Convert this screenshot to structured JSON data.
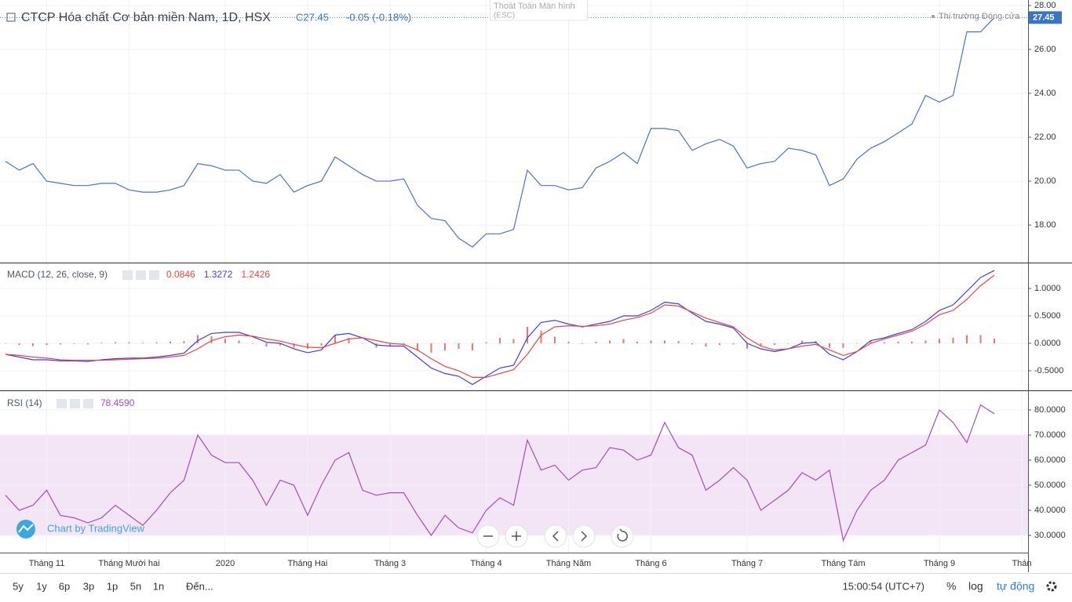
{
  "chart_data": [
    {
      "type": "line",
      "title": "CTCP Hóa chất Cơ bản miền Nam, 1D, HSX",
      "close_label": "C27.45",
      "change_label": "-0.05 (-0.18%)",
      "status": "Thị trường Đóng cửa",
      "last_label": "27.45",
      "ylim": [
        16.29,
        28.25
      ],
      "yticks": [
        {
          "value": 18,
          "label": "18.00"
        },
        {
          "value": 20,
          "label": "20.00"
        },
        {
          "value": 22,
          "label": "22.00"
        },
        {
          "value": 24,
          "label": "24.00"
        },
        {
          "value": 26,
          "label": "26.00"
        },
        {
          "value": 28,
          "label": "28.00"
        }
      ],
      "series": [
        {
          "color": "#4a72c9",
          "values": [
            20.9,
            20.5,
            20.8,
            20.0,
            19.9,
            19.8,
            19.8,
            19.9,
            19.9,
            19.6,
            19.5,
            19.5,
            19.6,
            19.8,
            20.8,
            20.7,
            20.5,
            20.5,
            20.0,
            19.9,
            20.3,
            19.5,
            19.8,
            20.0,
            21.1,
            20.7,
            20.3,
            20.0,
            20.0,
            20.1,
            18.9,
            18.3,
            18.2,
            17.4,
            17.0,
            17.6,
            17.6,
            17.8,
            20.5,
            19.8,
            19.8,
            19.6,
            19.7,
            20.6,
            20.9,
            21.3,
            20.8,
            22.4,
            22.4,
            22.3,
            21.4,
            21.7,
            21.9,
            21.6,
            20.6,
            20.8,
            20.9,
            21.5,
            21.4,
            21.2,
            19.8,
            20.1,
            21.0,
            21.5,
            21.8,
            22.2,
            22.6,
            23.9,
            23.6,
            23.9,
            26.8,
            26.8,
            27.45,
            null,
            null
          ]
        }
      ],
      "grid": true
    },
    {
      "type": "line",
      "title": "MACD (12, 26, close, 9)",
      "ylim": [
        -0.857,
        1.457
      ],
      "yticks": [
        {
          "value": -0.5,
          "label": "-0.5000"
        },
        {
          "value": 0,
          "label": "0.0000"
        },
        {
          "value": 0.5,
          "label": "0.5000"
        },
        {
          "value": 1,
          "label": "1.0000"
        }
      ],
      "series": [
        {
          "type": "bar",
          "color": "#ef4444",
          "last_label": "0.0846",
          "values": [
            0,
            -0.03,
            -0.05,
            -0.03,
            -0.02,
            -0.01,
            -0.02,
            0.01,
            0.02,
            0.02,
            0.01,
            0.02,
            0.03,
            0.04,
            0.15,
            0.13,
            0.08,
            0.05,
            -0.01,
            -0.06,
            -0.04,
            -0.08,
            -0.1,
            -0.04,
            0.15,
            0.1,
            0,
            -0.08,
            -0.05,
            -0.03,
            -0.13,
            -0.17,
            -0.13,
            -0.1,
            -0.13,
            0.02,
            0.1,
            0.08,
            0.3,
            0.23,
            0.12,
            0.03,
            -0.01,
            0.03,
            0.05,
            0.08,
            0.03,
            0.05,
            0.05,
            0.04,
            -0.02,
            -0.06,
            -0.03,
            -0.02,
            -0.1,
            -0.05,
            -0.03,
            0,
            0.05,
            0.04,
            -0.08,
            -0.08,
            0,
            0.05,
            0.02,
            0.03,
            0.03,
            0.05,
            0.08,
            0.1,
            0.15,
            0.15,
            0.0846,
            null,
            null
          ]
        },
        {
          "type": "line",
          "color": "#3f3fdc",
          "last_label": "1.3272",
          "values": [
            -0.2,
            -0.25,
            -0.3,
            -0.3,
            -0.32,
            -0.32,
            -0.33,
            -0.3,
            -0.28,
            -0.27,
            -0.27,
            -0.25,
            -0.22,
            -0.18,
            0.05,
            0.18,
            0.2,
            0.2,
            0.12,
            0.02,
            0.0,
            -0.1,
            -0.17,
            -0.12,
            0.15,
            0.18,
            0.1,
            -0.03,
            -0.05,
            -0.05,
            -0.25,
            -0.45,
            -0.55,
            -0.6,
            -0.75,
            -0.6,
            -0.45,
            -0.4,
            0.1,
            0.38,
            0.42,
            0.35,
            0.3,
            0.35,
            0.4,
            0.5,
            0.5,
            0.6,
            0.75,
            0.72,
            0.55,
            0.4,
            0.35,
            0.28,
            0.0,
            -0.1,
            -0.15,
            -0.1,
            0.0,
            0.02,
            -0.2,
            -0.3,
            -0.15,
            0.05,
            0.1,
            0.18,
            0.25,
            0.4,
            0.6,
            0.7,
            0.95,
            1.2,
            1.3272,
            null,
            null
          ]
        },
        {
          "type": "line",
          "color": "#ef4444",
          "last_label": "1.2426",
          "values": [
            -0.2,
            -0.22,
            -0.25,
            -0.27,
            -0.3,
            -0.31,
            -0.31,
            -0.31,
            -0.3,
            -0.29,
            -0.28,
            -0.27,
            -0.25,
            -0.22,
            -0.1,
            0.05,
            0.12,
            0.15,
            0.13,
            0.08,
            0.04,
            -0.02,
            -0.07,
            -0.08,
            0.0,
            0.08,
            0.1,
            0.05,
            0.0,
            -0.02,
            -0.12,
            -0.28,
            -0.42,
            -0.5,
            -0.62,
            -0.62,
            -0.55,
            -0.48,
            -0.2,
            0.15,
            0.3,
            0.32,
            0.31,
            0.32,
            0.35,
            0.42,
            0.47,
            0.55,
            0.7,
            0.68,
            0.57,
            0.46,
            0.38,
            0.3,
            0.1,
            -0.05,
            -0.12,
            -0.1,
            -0.05,
            -0.02,
            -0.12,
            -0.22,
            -0.15,
            0.0,
            0.08,
            0.15,
            0.22,
            0.35,
            0.52,
            0.6,
            0.8,
            1.05,
            1.2426,
            null,
            null
          ]
        }
      ],
      "grid": true
    },
    {
      "type": "line",
      "title": "RSI (14)",
      "ylim": [
        23.13,
        87.5
      ],
      "yticks": [
        {
          "value": 30,
          "label": "30.0000"
        },
        {
          "value": 40,
          "label": "40.0000"
        },
        {
          "value": 50,
          "label": "50.0000"
        },
        {
          "value": 60,
          "label": "60.0000"
        },
        {
          "value": 70,
          "label": "70.0000"
        },
        {
          "value": 80,
          "label": "80.0000"
        }
      ],
      "band": [
        30,
        70
      ],
      "band_color": "#f3e5f5",
      "categories": [
        null,
        null,
        null,
        "Tháng 11",
        null,
        null,
        null,
        null,
        null,
        "Tháng Mười hai",
        null,
        null,
        null,
        null,
        null,
        null,
        "2020",
        null,
        null,
        null,
        null,
        null,
        "Tháng Hai",
        null,
        null,
        null,
        null,
        null,
        "Tháng 3",
        null,
        null,
        null,
        null,
        null,
        null,
        "Tháng 4",
        null,
        null,
        null,
        null,
        null,
        "Tháng Năm",
        null,
        null,
        null,
        null,
        null,
        "Tháng 6",
        null,
        null,
        null,
        null,
        null,
        null,
        "Tháng 7",
        null,
        null,
        null,
        null,
        null,
        null,
        "Tháng Tám",
        null,
        null,
        null,
        null,
        null,
        null,
        "Tháng 9",
        null,
        null,
        null,
        null,
        null,
        "Thán"
      ],
      "series": [
        {
          "color": "#a64bbf",
          "last_label": "78.4590",
          "values": [
            46,
            40,
            42,
            48,
            38,
            37,
            35,
            37,
            42,
            38,
            34,
            40,
            47,
            52,
            70,
            62,
            59,
            59,
            52,
            42,
            52,
            50,
            38,
            50,
            60,
            63,
            48,
            46,
            47,
            47,
            38,
            30,
            38,
            33,
            31,
            40,
            45,
            42,
            68,
            56,
            58,
            52,
            56,
            57,
            65,
            64,
            60,
            62,
            75,
            65,
            62,
            48,
            52,
            57,
            52,
            40,
            44,
            48,
            55,
            52,
            56,
            28,
            40,
            48,
            52,
            60,
            63,
            66,
            80,
            75,
            67,
            82,
            78.459,
            null,
            null
          ]
        }
      ],
      "grid": true
    }
  ],
  "watermark": "Chart by TradingView",
  "tooltip": {
    "title": "Thoát Toàn Màn hình",
    "key": "(ESC)"
  },
  "toolbar": {
    "ranges": [
      "5y",
      "1y",
      "6p",
      "3p",
      "1p",
      "5n",
      "1n"
    ],
    "goto": "Đến...",
    "time": "15:00:54 (UTC+7)",
    "percent": "%",
    "log": "log",
    "auto": "tự động"
  }
}
